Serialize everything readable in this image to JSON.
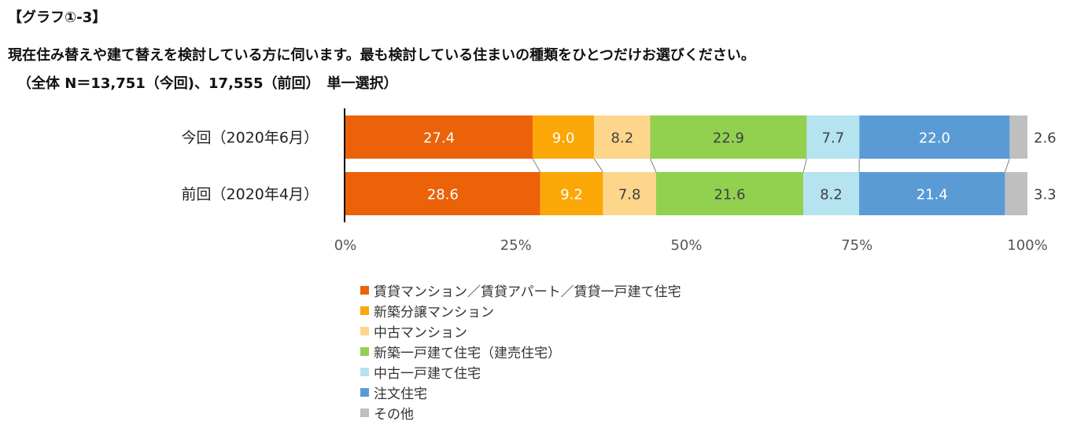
{
  "header": {
    "graph_label": "【グラフ①-3】",
    "question": "現在住み替えや建て替えを検討している方に伺います。最も検討している住まいの種類をひとつだけお選びください。",
    "respondents": "（全体 N＝13,751（今回)、17,555（前回）　単一選択）"
  },
  "chart_data": {
    "type": "bar",
    "orientation": "horizontal",
    "stacked": "100%",
    "categories": [
      "今回（2020年6月）",
      "前回（2020年4月）"
    ],
    "series": [
      {
        "name": "賃貸マンション／賃貸アパート／賃貸一戸建て住宅",
        "values": [
          27.4,
          28.6
        ],
        "color": "#EB6209",
        "label_color": "#ffffff"
      },
      {
        "name": "新築分譲マンション",
        "values": [
          9.0,
          9.2
        ],
        "color": "#FBA707",
        "label_color": "#ffffff"
      },
      {
        "name": "中古マンション",
        "values": [
          8.2,
          7.8
        ],
        "color": "#FDD68C",
        "label_color": "#404040"
      },
      {
        "name": "新築一戸建て住宅（建売住宅）",
        "values": [
          22.9,
          21.6
        ],
        "color": "#92D050",
        "label_color": "#404040"
      },
      {
        "name": "中古一戸建て住宅",
        "values": [
          7.7,
          8.2
        ],
        "color": "#B5E3F0",
        "label_color": "#404040"
      },
      {
        "name": "注文住宅",
        "values": [
          22.0,
          21.4
        ],
        "color": "#5B9BD5",
        "label_color": "#ffffff"
      },
      {
        "name": "その他",
        "values": [
          2.6,
          3.3
        ],
        "color": "#BFBFBF",
        "label_color": "#404040"
      }
    ],
    "value_labels": [
      [
        "27.4",
        "9.0",
        "8.2",
        "22.9",
        "7.7",
        "22.0",
        "2.6"
      ],
      [
        "28.6",
        "9.2",
        "7.8",
        "21.6",
        "8.2",
        "21.4",
        "3.3"
      ]
    ],
    "xlim": [
      0,
      100
    ],
    "xticks": [
      "0%",
      "25%",
      "50%",
      "75%",
      "100%"
    ],
    "series_lines": true,
    "legend_position": "bottom"
  }
}
